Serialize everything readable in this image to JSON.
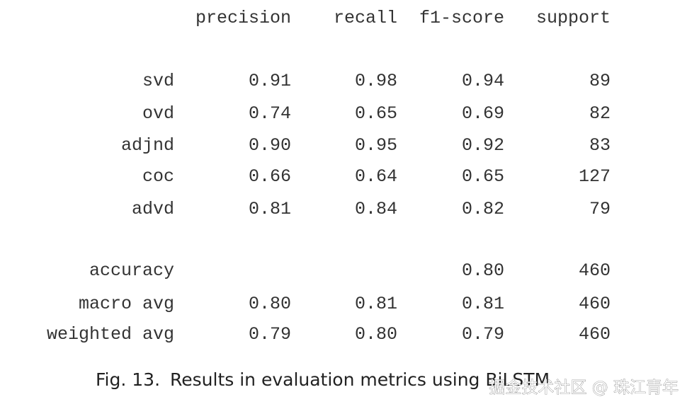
{
  "table": {
    "header": [
      "precision",
      "recall",
      "f1-score",
      "support"
    ],
    "groups": [
      [
        {
          "label": "svd",
          "precision": "0.91",
          "recall": "0.98",
          "f1": "0.94",
          "support": "89"
        },
        {
          "label": "ovd",
          "precision": "0.74",
          "recall": "0.65",
          "f1": "0.69",
          "support": "82"
        },
        {
          "label": "adjnd",
          "precision": "0.90",
          "recall": "0.95",
          "f1": "0.92",
          "support": "83"
        },
        {
          "label": "coc",
          "precision": "0.66",
          "recall": "0.64",
          "f1": "0.65",
          "support": "127"
        },
        {
          "label": "advd",
          "precision": "0.81",
          "recall": "0.84",
          "f1": "0.82",
          "support": "79"
        }
      ],
      [
        {
          "label": "accuracy",
          "f1": "0.80",
          "support": "460"
        },
        {
          "label": "macro avg",
          "precision": "0.80",
          "recall": "0.81",
          "f1": "0.81",
          "support": "460"
        },
        {
          "label": "weighted avg",
          "precision": "0.79",
          "recall": "0.80",
          "f1": "0.79",
          "support": "460"
        }
      ]
    ]
  },
  "caption": {
    "label": "Fig. 13.",
    "text": "Results in evaluation metrics using BiLSTM"
  },
  "watermark": "掘金技术社区 @ 珠江青年"
}
